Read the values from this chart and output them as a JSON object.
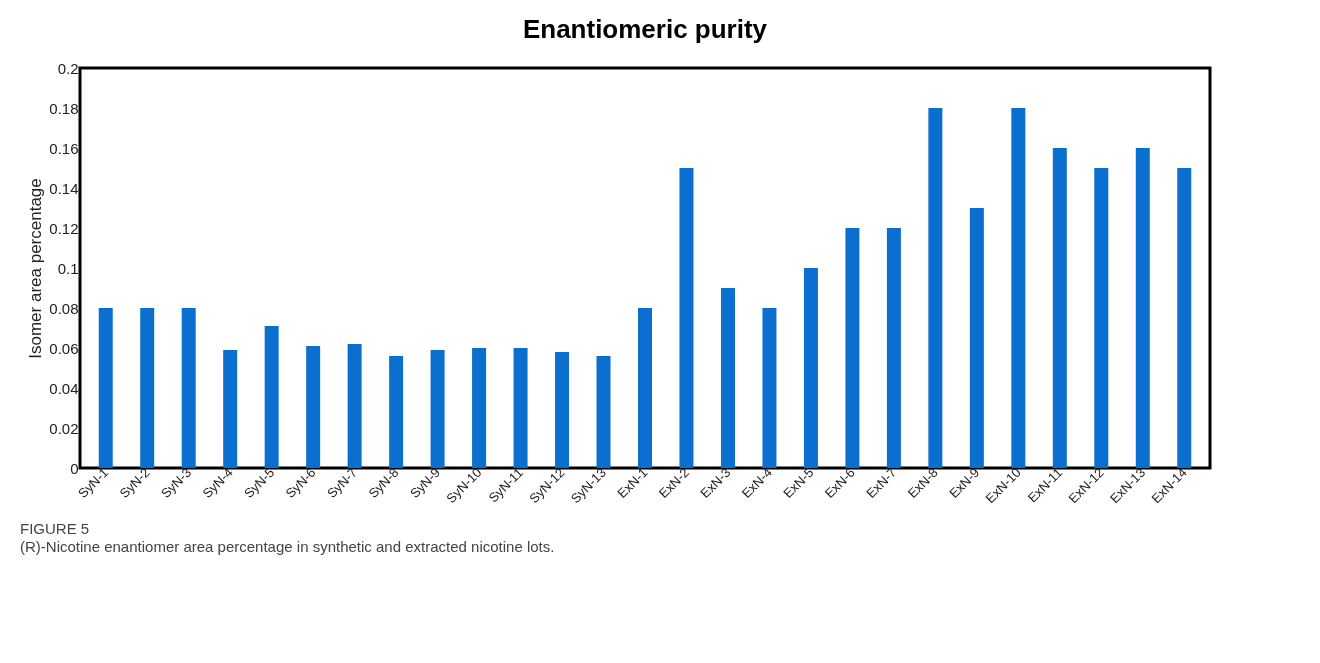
{
  "chart_data": {
    "type": "bar",
    "title": "Enantiomeric purity",
    "ylabel": "Isomer area percentage",
    "categories": [
      "SyN-1",
      "SyN-2",
      "SyN-3",
      "SyN-4",
      "SyN-5",
      "SyN-6",
      "SyN-7",
      "SyN-8",
      "SyN-9",
      "SyN-10",
      "SyN-11",
      "SyN-12",
      "SyN-13",
      "ExN-1",
      "ExN-2",
      "ExN-3",
      "ExN-4",
      "ExN-5",
      "ExN-6",
      "ExN-7",
      "ExN-8",
      "ExN-9",
      "ExN-10",
      "ExN-11",
      "ExN-12",
      "ExN-13",
      "ExN-14"
    ],
    "values": [
      0.08,
      0.08,
      0.08,
      0.059,
      0.071,
      0.061,
      0.062,
      0.056,
      0.059,
      0.06,
      0.06,
      0.058,
      0.056,
      0.08,
      0.15,
      0.09,
      0.08,
      0.1,
      0.12,
      0.12,
      0.18,
      0.13,
      0.18,
      0.16,
      0.15,
      0.16,
      0.15
    ],
    "color": "#0a6fce",
    "ylim": [
      0,
      0.2
    ],
    "yticks": [
      0,
      0.02,
      0.04,
      0.06,
      0.08,
      0.1,
      0.12,
      0.14,
      0.16,
      0.18,
      0.2
    ],
    "grid": false,
    "annotations": [
      "FIGURE 5",
      "(R)-Nicotine enantiomer area percentage in synthetic and extracted nicotine lots."
    ]
  }
}
